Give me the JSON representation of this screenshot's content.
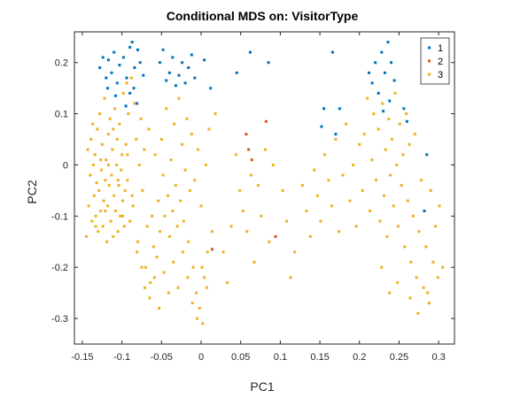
{
  "chart_data": {
    "type": "scatter",
    "title": "Conditional MDS on: VisitorType",
    "xlabel": "PC1",
    "ylabel": "PC2",
    "xlim": [
      -0.16,
      0.32
    ],
    "ylim": [
      -0.35,
      0.26
    ],
    "xticks": [
      -0.15,
      -0.1,
      -0.05,
      0,
      0.05,
      0.1,
      0.15,
      0.2,
      0.25,
      0.3
    ],
    "xtick_labels": [
      "-0.15",
      "-0.1",
      "-0.05",
      "0",
      "0.05",
      "0.1",
      "0.15",
      "0.2",
      "0.25",
      "0.3"
    ],
    "yticks": [
      0.2,
      0.1,
      0,
      -0.1,
      -0.2,
      -0.3
    ],
    "ytick_labels": [
      "0.2",
      "0.1",
      "0",
      "-0.1",
      "-0.2",
      "-0.3"
    ],
    "grid": false,
    "legend_position": "top-right",
    "series": [
      {
        "name": "1",
        "color": "#0072BD",
        "points": [
          [
            -0.128,
            0.19
          ],
          [
            -0.124,
            0.21
          ],
          [
            -0.12,
            0.17
          ],
          [
            -0.117,
            0.205
          ],
          [
            -0.113,
            0.18
          ],
          [
            -0.11,
            0.22
          ],
          [
            -0.106,
            0.16
          ],
          [
            -0.103,
            0.195
          ],
          [
            -0.118,
            0.15
          ],
          [
            -0.108,
            0.135
          ],
          [
            -0.098,
            0.21
          ],
          [
            -0.094,
            0.17
          ],
          [
            -0.09,
            0.23
          ],
          [
            -0.087,
            0.24
          ],
          [
            -0.084,
            0.19
          ],
          [
            -0.08,
            0.225
          ],
          [
            -0.085,
            0.15
          ],
          [
            -0.081,
            0.12
          ],
          [
            -0.077,
            0.2
          ],
          [
            -0.073,
            0.175
          ],
          [
            -0.09,
            0.14
          ],
          [
            -0.095,
            0.115
          ],
          [
            -0.052,
            0.2
          ],
          [
            -0.048,
            0.225
          ],
          [
            -0.044,
            0.165
          ],
          [
            -0.04,
            0.18
          ],
          [
            -0.036,
            0.21
          ],
          [
            -0.032,
            0.155
          ],
          [
            -0.028,
            0.175
          ],
          [
            -0.024,
            0.2
          ],
          [
            -0.02,
            0.16
          ],
          [
            -0.016,
            0.19
          ],
          [
            -0.012,
            0.215
          ],
          [
            -0.008,
            0.17
          ],
          [
            0.004,
            0.205
          ],
          [
            0.012,
            0.15
          ],
          [
            0.045,
            0.18
          ],
          [
            0.062,
            0.22
          ],
          [
            0.085,
            0.2
          ],
          [
            0.155,
            0.11
          ],
          [
            0.166,
            0.22
          ],
          [
            0.175,
            0.11
          ],
          [
            0.152,
            0.075
          ],
          [
            0.17,
            0.06
          ],
          [
            0.212,
            0.18
          ],
          [
            0.216,
            0.16
          ],
          [
            0.22,
            0.2
          ],
          [
            0.224,
            0.14
          ],
          [
            0.228,
            0.22
          ],
          [
            0.232,
            0.18
          ],
          [
            0.236,
            0.24
          ],
          [
            0.24,
            0.2
          ],
          [
            0.244,
            0.165
          ],
          [
            0.238,
            0.125
          ],
          [
            0.23,
            0.105
          ],
          [
            0.256,
            0.11
          ],
          [
            0.26,
            0.085
          ],
          [
            0.285,
            0.02
          ],
          [
            0.282,
            -0.09
          ]
        ]
      },
      {
        "name": "2",
        "color": "#D95319",
        "points": [
          [
            0.057,
            0.06
          ],
          [
            0.06,
            0.03
          ],
          [
            0.064,
            0.01
          ],
          [
            0.082,
            0.085
          ],
          [
            0.094,
            -0.14
          ],
          [
            0.014,
            -0.165
          ]
        ]
      },
      {
        "name": "3",
        "color": "#EDB120",
        "points": [
          [
            -0.145,
            -0.14
          ],
          [
            -0.142,
            -0.08
          ],
          [
            -0.14,
            -0.02
          ],
          [
            -0.139,
            0.05
          ],
          [
            -0.138,
            -0.11
          ],
          [
            -0.136,
            0.0
          ],
          [
            -0.135,
            -0.06
          ],
          [
            -0.134,
            0.02
          ],
          [
            -0.133,
            -0.1
          ],
          [
            -0.132,
            -0.035
          ],
          [
            -0.131,
            0.07
          ],
          [
            -0.13,
            -0.13
          ],
          [
            -0.129,
            -0.05
          ],
          [
            -0.128,
            0.1
          ],
          [
            -0.127,
            -0.09
          ],
          [
            -0.126,
            -0.01
          ],
          [
            -0.125,
            0.04
          ],
          [
            -0.124,
            -0.12
          ],
          [
            -0.123,
            -0.07
          ],
          [
            -0.122,
            0.13
          ],
          [
            -0.121,
            -0.03
          ],
          [
            -0.12,
            0.01
          ],
          [
            -0.119,
            -0.15
          ],
          [
            -0.118,
            -0.08
          ],
          [
            -0.117,
            0.06
          ],
          [
            -0.116,
            -0.04
          ],
          [
            -0.115,
            0.09
          ],
          [
            -0.114,
            -0.11
          ],
          [
            -0.113,
            -0.02
          ],
          [
            -0.112,
            0.03
          ],
          [
            -0.111,
            -0.14
          ],
          [
            -0.11,
            -0.06
          ],
          [
            -0.109,
            0.11
          ],
          [
            -0.108,
            -0.09
          ],
          [
            -0.107,
            0.0
          ],
          [
            -0.106,
            0.05
          ],
          [
            -0.105,
            -0.13
          ],
          [
            -0.104,
            -0.04
          ],
          [
            -0.103,
            0.08
          ],
          [
            -0.102,
            -0.1
          ],
          [
            -0.101,
            -0.01
          ],
          [
            -0.1,
            0.02
          ],
          [
            -0.099,
            -0.07
          ],
          [
            -0.098,
            0.14
          ],
          [
            -0.097,
            -0.12
          ],
          [
            -0.096,
            -0.05
          ],
          [
            -0.095,
            0.04
          ],
          [
            -0.094,
            0.16
          ],
          [
            -0.093,
            -0.03
          ],
          [
            -0.092,
            0.1
          ],
          [
            -0.09,
            -0.11
          ],
          [
            -0.088,
            0.17
          ],
          [
            -0.086,
            -0.08
          ],
          [
            -0.084,
            0.12
          ],
          [
            -0.082,
            0.05
          ],
          [
            -0.08,
            -0.15
          ],
          [
            -0.078,
            0.0
          ],
          [
            -0.076,
            0.09
          ],
          [
            -0.074,
            -0.05
          ],
          [
            -0.072,
            0.03
          ],
          [
            -0.07,
            -0.2
          ],
          [
            -0.068,
            -0.12
          ],
          [
            -0.066,
            0.07
          ],
          [
            -0.064,
            -0.23
          ],
          [
            -0.062,
            -0.1
          ],
          [
            -0.06,
            -0.16
          ],
          [
            -0.058,
            0.02
          ],
          [
            -0.056,
            -0.18
          ],
          [
            -0.054,
            -0.07
          ],
          [
            -0.052,
            -0.13
          ],
          [
            -0.05,
            0.05
          ],
          [
            -0.048,
            -0.02
          ],
          [
            -0.046,
            -0.1
          ],
          [
            -0.044,
            0.11
          ],
          [
            -0.042,
            -0.06
          ],
          [
            -0.04,
            -0.14
          ],
          [
            -0.038,
            0.01
          ],
          [
            -0.036,
            -0.09
          ],
          [
            -0.034,
            0.08
          ],
          [
            -0.032,
            -0.04
          ],
          [
            -0.03,
            -0.12
          ],
          [
            -0.028,
            0.13
          ],
          [
            -0.026,
            -0.07
          ],
          [
            -0.024,
            0.04
          ],
          [
            -0.022,
            -0.11
          ],
          [
            -0.02,
            -0.01
          ],
          [
            -0.018,
            0.09
          ],
          [
            -0.016,
            -0.15
          ],
          [
            -0.014,
            -0.05
          ],
          [
            -0.012,
            0.06
          ],
          [
            -0.01,
            -0.2
          ],
          [
            -0.008,
            -0.03
          ],
          [
            -0.006,
            -0.25
          ],
          [
            -0.004,
            0.03
          ],
          [
            -0.002,
            -0.28
          ],
          [
            0.0,
            -0.08
          ],
          [
            0.002,
            -0.31
          ],
          [
            0.004,
            -0.22
          ],
          [
            0.006,
            0.0
          ],
          [
            0.008,
            -0.17
          ],
          [
            0.01,
            0.07
          ],
          [
            0.014,
            -0.13
          ],
          [
            0.018,
            0.1
          ],
          [
            -0.143,
            0.03
          ],
          [
            -0.137,
            0.08
          ],
          [
            -0.133,
            -0.12
          ],
          [
            -0.127,
            0.01
          ],
          [
            -0.121,
            -0.09
          ],
          [
            -0.117,
            0.0
          ],
          [
            -0.111,
            0.07
          ],
          [
            -0.105,
            -0.03
          ],
          [
            -0.099,
            -0.1
          ],
          [
            -0.093,
            0.02
          ],
          [
            -0.087,
            -0.06
          ],
          [
            -0.081,
            -0.17
          ],
          [
            -0.075,
            -0.2
          ],
          [
            -0.071,
            -0.24
          ],
          [
            -0.065,
            -0.26
          ],
          [
            -0.059,
            -0.22
          ],
          [
            -0.053,
            -0.28
          ],
          [
            -0.047,
            -0.21
          ],
          [
            -0.041,
            -0.25
          ],
          [
            -0.035,
            -0.19
          ],
          [
            -0.029,
            -0.24
          ],
          [
            -0.023,
            -0.17
          ],
          [
            -0.017,
            -0.22
          ],
          [
            -0.011,
            -0.27
          ],
          [
            -0.005,
            -0.3
          ],
          [
            0.001,
            -0.2
          ],
          [
            0.007,
            -0.24
          ],
          [
            0.028,
            -0.17
          ],
          [
            0.033,
            -0.23
          ],
          [
            0.038,
            -0.12
          ],
          [
            0.044,
            0.02
          ],
          [
            0.049,
            -0.05
          ],
          [
            0.053,
            -0.09
          ],
          [
            0.058,
            -0.13
          ],
          [
            0.063,
            -0.02
          ],
          [
            0.067,
            -0.19
          ],
          [
            0.072,
            -0.04
          ],
          [
            0.076,
            -0.1
          ],
          [
            0.081,
            0.03
          ],
          [
            0.086,
            -0.15
          ],
          [
            0.091,
            0.0
          ],
          [
            0.103,
            -0.05
          ],
          [
            0.108,
            -0.11
          ],
          [
            0.113,
            -0.22
          ],
          [
            0.118,
            -0.17
          ],
          [
            0.128,
            -0.04
          ],
          [
            0.133,
            -0.09
          ],
          [
            0.138,
            -0.14
          ],
          [
            0.143,
            -0.01
          ],
          [
            0.147,
            -0.06
          ],
          [
            0.151,
            -0.11
          ],
          [
            0.156,
            0.02
          ],
          [
            0.161,
            -0.03
          ],
          [
            0.165,
            -0.08
          ],
          [
            0.17,
            0.05
          ],
          [
            0.174,
            -0.13
          ],
          [
            0.179,
            -0.02
          ],
          [
            0.183,
            0.08
          ],
          [
            0.188,
            -0.07
          ],
          [
            0.192,
            0.0
          ],
          [
            0.196,
            -0.12
          ],
          [
            0.2,
            0.04
          ],
          [
            0.204,
            -0.05
          ],
          [
            0.206,
            0.06
          ],
          [
            0.21,
            0.13
          ],
          [
            0.213,
            -0.09
          ],
          [
            0.216,
            0.01
          ],
          [
            0.218,
            0.1
          ],
          [
            0.221,
            -0.03
          ],
          [
            0.224,
            0.07
          ],
          [
            0.226,
            -0.11
          ],
          [
            0.229,
            0.12
          ],
          [
            0.231,
            -0.06
          ],
          [
            0.233,
            0.03
          ],
          [
            0.235,
            -0.14
          ],
          [
            0.237,
            0.09
          ],
          [
            0.239,
            -0.02
          ],
          [
            0.241,
            0.05
          ],
          [
            0.243,
            -0.08
          ],
          [
            0.245,
            0.14
          ],
          [
            0.247,
            0.0
          ],
          [
            0.249,
            -0.12
          ],
          [
            0.251,
            0.08
          ],
          [
            0.253,
            -0.04
          ],
          [
            0.255,
            0.02
          ],
          [
            0.257,
            -0.16
          ],
          [
            0.259,
            0.1
          ],
          [
            0.261,
            -0.07
          ],
          [
            0.263,
            0.04
          ],
          [
            0.265,
            -0.19
          ],
          [
            0.268,
            -0.1
          ],
          [
            0.27,
            0.06
          ],
          [
            0.272,
            -0.22
          ],
          [
            0.275,
            -0.13
          ],
          [
            0.278,
            -0.03
          ],
          [
            0.281,
            -0.24
          ],
          [
            0.284,
            -0.16
          ],
          [
            0.288,
            -0.27
          ],
          [
            0.29,
            -0.05
          ],
          [
            0.293,
            -0.19
          ],
          [
            0.296,
            -0.12
          ],
          [
            0.299,
            -0.22
          ],
          [
            0.301,
            -0.08
          ],
          [
            0.305,
            -0.2
          ],
          [
            0.228,
            -0.2
          ],
          [
            0.238,
            -0.25
          ],
          [
            0.248,
            -0.23
          ],
          [
            0.264,
            -0.26
          ],
          [
            0.274,
            -0.29
          ],
          [
            0.286,
            -0.25
          ]
        ]
      }
    ]
  }
}
